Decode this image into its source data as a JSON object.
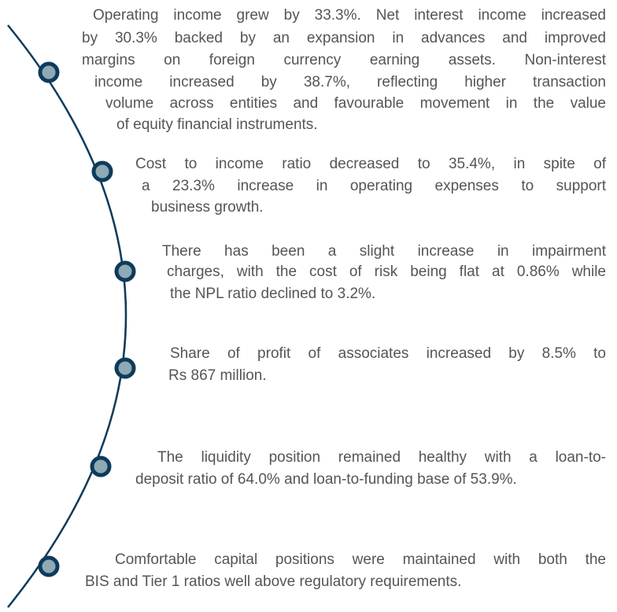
{
  "paragraphs": [
    {
      "lines": [
        "Operating income grew by 33.3%. Net interest income increased",
        "by 30.3% backed by an expansion in advances and improved",
        "margins on foreign currency earning assets. Non-interest",
        "income increased by 38.7%, reflecting higher transaction",
        "volume across entities and favourable movement in the value",
        "of equity financial instruments."
      ]
    },
    {
      "lines": [
        "Cost to income ratio decreased to 35.4%, in spite of",
        "a 23.3% increase in operating expenses to support",
        "business growth."
      ]
    },
    {
      "lines": [
        "There has been a slight increase in impairment",
        "charges, with the cost of risk being flat at 0.86% while",
        "the NPL ratio declined to 3.2%."
      ]
    },
    {
      "lines": [
        "Share of profit of associates increased by 8.5% to",
        "Rs 867 million."
      ]
    },
    {
      "lines": [
        "The liquidity position remained healthy with a loan-to-",
        "deposit ratio of 64.0% and loan-to-funding base of 53.9%."
      ]
    },
    {
      "lines": [
        "Comfortable capital positions were maintained with both the",
        "BIS and Tier 1 ratios well above regulatory requirements."
      ]
    }
  ]
}
